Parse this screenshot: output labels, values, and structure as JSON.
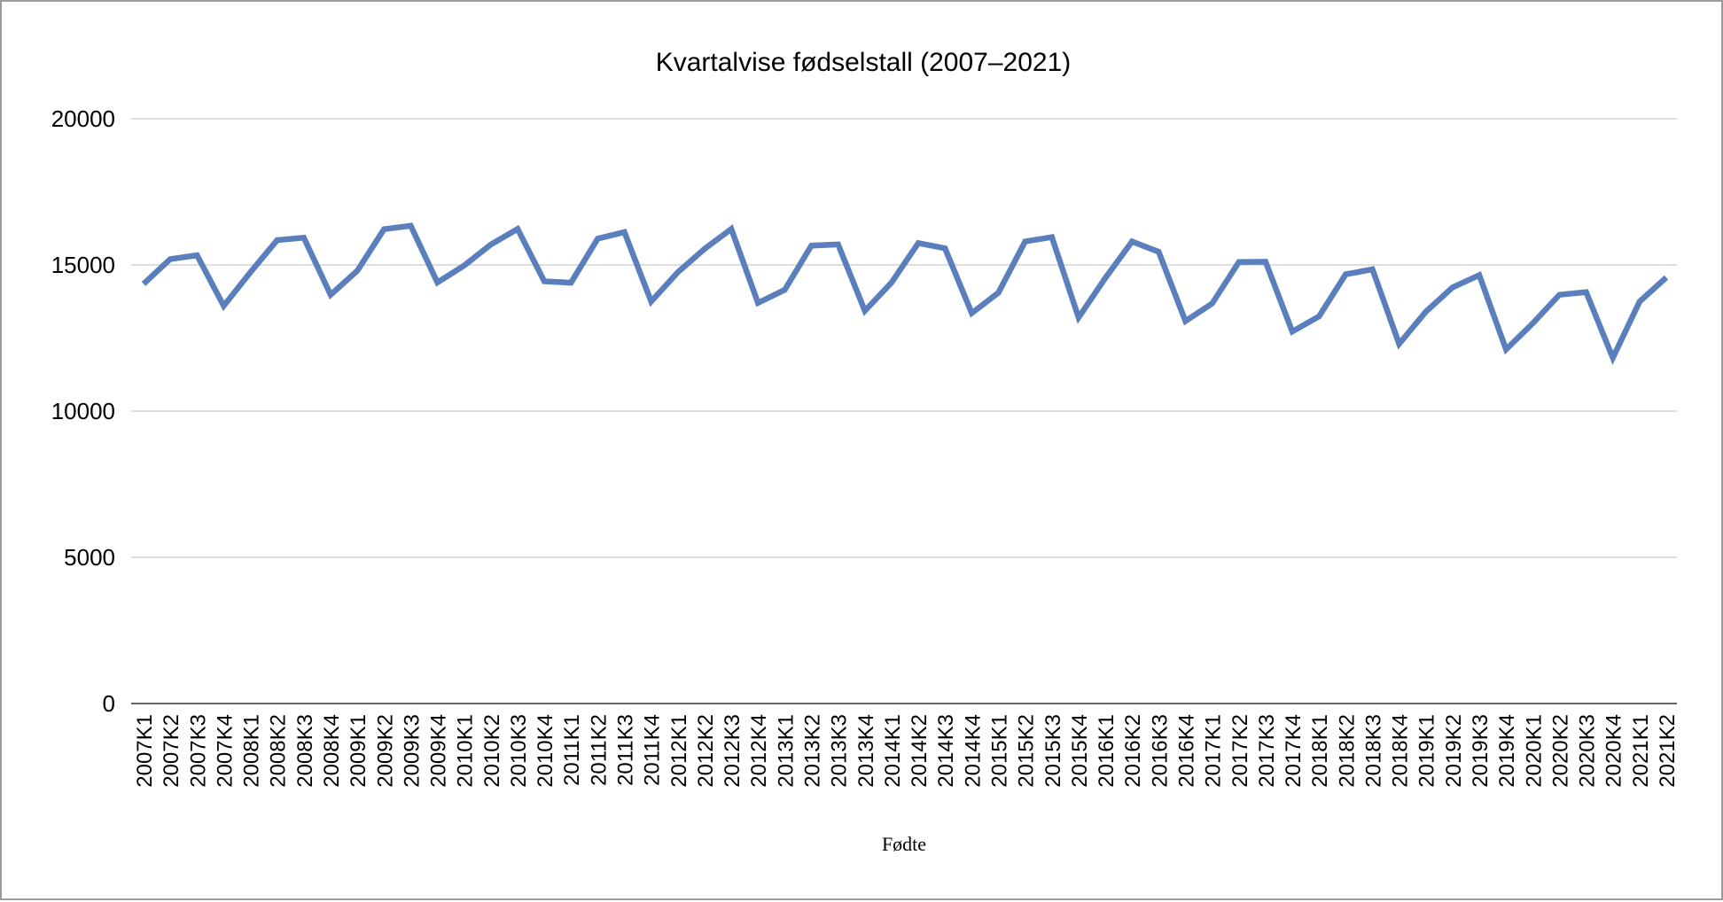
{
  "chart_data": {
    "type": "line",
    "title": "Kvartalvise fødselstall (2007–2021)",
    "xlabel": "",
    "ylabel": "",
    "ylim": [
      0,
      20000
    ],
    "yticks": [
      "0",
      "5000",
      "10000",
      "15000",
      "20000"
    ],
    "grid": true,
    "legend_position": "bottom",
    "color": "#5b7fbd",
    "categories": [
      "2007K1",
      "2007K2",
      "2007K3",
      "2007K4",
      "2008K1",
      "2008K2",
      "2008K3",
      "2008K4",
      "2009K1",
      "2009K2",
      "2009K3",
      "2009K4",
      "2010K1",
      "2010K2",
      "2010K3",
      "2010K4",
      "2011K1",
      "2011K2",
      "2011K3",
      "2011K4",
      "2012K1",
      "2012K2",
      "2012K3",
      "2012K4",
      "2013K1",
      "2013K2",
      "2013K3",
      "2013K4",
      "2014K1",
      "2014K2",
      "2014K3",
      "2014K4",
      "2015K1",
      "2015K2",
      "2015K3",
      "2015K4",
      "2016K1",
      "2016K2",
      "2016K3",
      "2016K4",
      "2017K1",
      "2017K2",
      "2017K3",
      "2017K4",
      "2018K1",
      "2018K2",
      "2018K3",
      "2018K4",
      "2019K1",
      "2019K2",
      "2019K3",
      "2019K4",
      "2020K1",
      "2020K2",
      "2020K3",
      "2020K4",
      "2021K1",
      "2021K2"
    ],
    "series": [
      {
        "name": "Fødte",
        "values": [
          14350,
          15200,
          15330,
          13600,
          14750,
          15850,
          15930,
          13980,
          14800,
          16220,
          16340,
          14400,
          14980,
          15700,
          16230,
          14440,
          14390,
          15900,
          16120,
          13750,
          14750,
          15550,
          16230,
          13700,
          14150,
          15660,
          15700,
          13430,
          14400,
          15750,
          15570,
          13350,
          14050,
          15800,
          15950,
          13200,
          14550,
          15800,
          15450,
          13080,
          13680,
          15100,
          15110,
          12720,
          13240,
          14680,
          14850,
          12300,
          13400,
          14230,
          14650,
          12110,
          13000,
          13980,
          14070,
          11820,
          13750,
          14570
        ]
      }
    ]
  }
}
